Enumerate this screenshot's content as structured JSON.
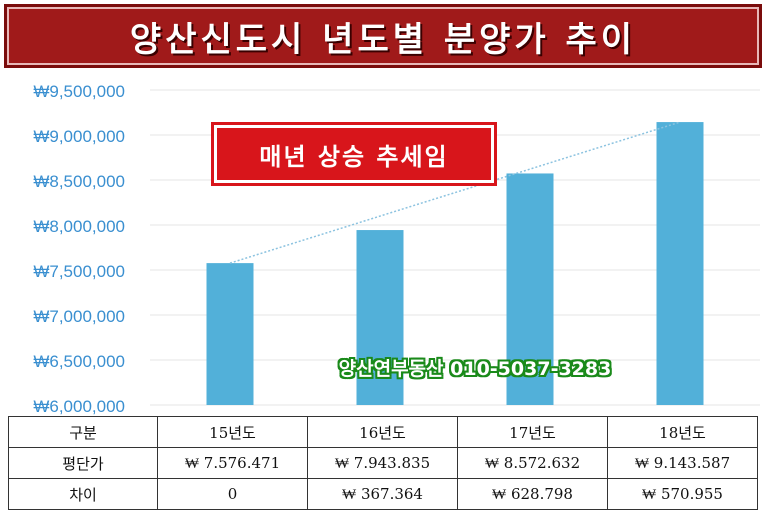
{
  "title": "양산신도시 년도별 분양가 추이",
  "badge": "매년 상승 추세임",
  "contact": "양산연부동산 010-5037-3283",
  "colors": {
    "bar": "#52b0d9",
    "title_bg": "#a01a1a",
    "badge_bg": "#d8151b",
    "axis_text": "#3a8fd0"
  },
  "table": {
    "row_labels": [
      "구분",
      "평단가",
      "차이"
    ],
    "columns": [
      "15년도",
      "16년도",
      "17년도",
      "18년도"
    ],
    "prices": [
      "₩ 7.576.471",
      "₩ 7.943.835",
      "₩ 8.572.632",
      "₩ 9.143.587"
    ],
    "diffs": [
      "0",
      "₩ 367.364",
      "₩ 628.798",
      "₩ 570.955"
    ]
  },
  "chart_data": {
    "type": "bar",
    "categories": [
      "15년도",
      "16년도",
      "17년도",
      "18년도"
    ],
    "values": [
      7576471,
      7943835,
      8572632,
      9143587
    ],
    "ylim": [
      6000000,
      9500000
    ],
    "yticks": [
      "₩6,000,000",
      "₩6,500,000",
      "₩7,000,000",
      "₩7,500,000",
      "₩8,000,000",
      "₩8,500,000",
      "₩9,000,000",
      "₩9,500,000"
    ],
    "trendline": true,
    "grid": true
  }
}
